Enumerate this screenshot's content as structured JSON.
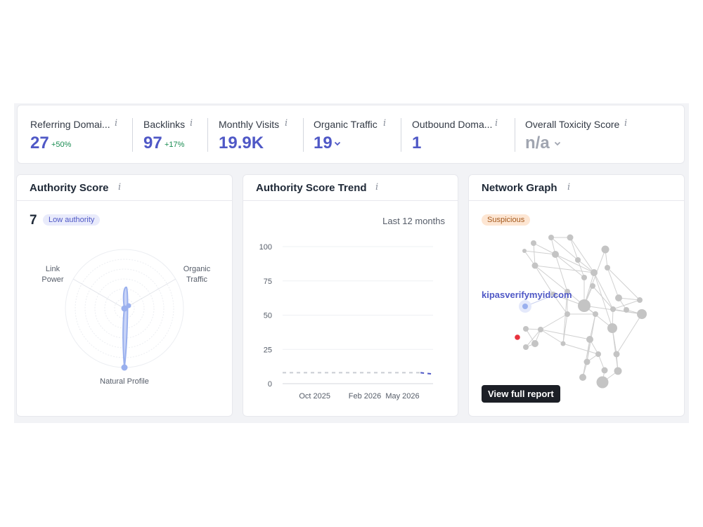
{
  "metrics": {
    "referring_domains": {
      "label": "Referring Domai...",
      "value": "27",
      "delta": "+50%"
    },
    "backlinks": {
      "label": "Backlinks",
      "value": "97",
      "delta": "+17%"
    },
    "monthly_visits": {
      "label": "Monthly Visits",
      "value": "19.9K"
    },
    "organic_traffic": {
      "label": "Organic Traffic",
      "value": "19"
    },
    "outbound_domains": {
      "label": "Outbound Doma...",
      "value": "1"
    },
    "toxicity": {
      "label": "Overall Toxicity Score",
      "value": "n/a"
    },
    "info_glyph": "i"
  },
  "authority_score": {
    "title": "Authority Score",
    "value": "7",
    "badge": "Low authority",
    "radar_labels": {
      "link_power_1": "Link",
      "link_power_2": "Power",
      "organic_1": "Organic",
      "organic_2": "Traffic",
      "natural": "Natural Profile"
    }
  },
  "trend": {
    "title": "Authority Score Trend",
    "period": "Last 12 months"
  },
  "chart_data": {
    "type": "line",
    "x": [
      "2025-06",
      "2025-07",
      "2025-08",
      "2025-09",
      "2025-10",
      "2025-11",
      "2025-12",
      "2026-01",
      "2026-02",
      "2026-03",
      "2026-04",
      "2026-05",
      "2026-06"
    ],
    "series": [
      {
        "values": [
          8,
          8,
          8,
          8,
          8,
          8,
          8,
          8,
          8,
          8,
          8,
          8,
          7
        ]
      }
    ],
    "xticks": [
      "Oct 2025",
      "Feb 2026",
      "May 2026"
    ],
    "yticks": [
      "0",
      "25",
      "50",
      "75",
      "100"
    ],
    "ylim": [
      0,
      100
    ],
    "grid": true,
    "colors": {
      "dashed": "#c9ccd3",
      "recent": "#4f58c6"
    }
  },
  "network": {
    "title": "Network Graph",
    "badge": "Suspicious",
    "domain_label": "kipasverifymyid.com",
    "button": "View full report",
    "colors": {
      "node": "#c4c4c4",
      "edge": "#d0d0d0",
      "self": "#9ab0ee",
      "toxic": "#e8323d"
    }
  }
}
